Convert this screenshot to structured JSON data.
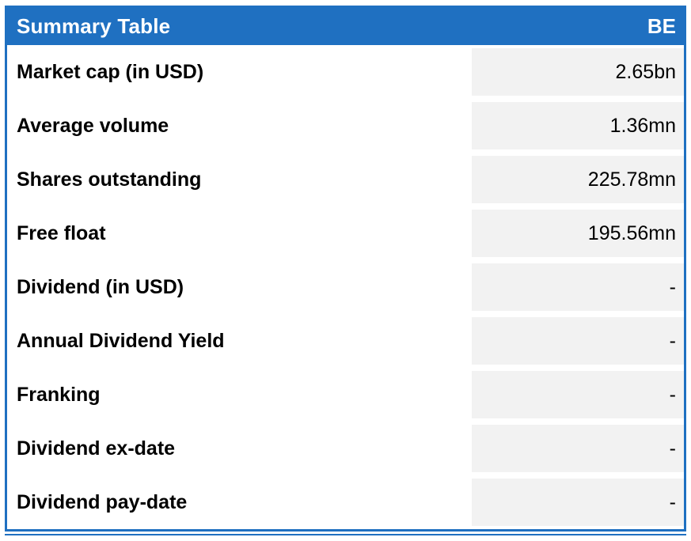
{
  "table": {
    "header": {
      "title": "Summary Table",
      "ticker": "BE"
    },
    "rows": [
      {
        "label": "Market cap (in USD)",
        "value": "2.65bn"
      },
      {
        "label": "Average volume",
        "value": "1.36mn"
      },
      {
        "label": "Shares outstanding",
        "value": "225.78mn"
      },
      {
        "label": "Free float",
        "value": "195.56mn"
      },
      {
        "label": "Dividend (in USD)",
        "value": "-"
      },
      {
        "label": "Annual Dividend Yield",
        "value": "-"
      },
      {
        "label": "Franking",
        "value": "-"
      },
      {
        "label": "Dividend ex-date",
        "value": "-"
      },
      {
        "label": "Dividend pay-date",
        "value": "-"
      }
    ],
    "colors": {
      "header_bg": "#1F70C1",
      "header_text": "#FFFFFF",
      "value_cell_bg": "#F2F2F2",
      "border": "#1F70C1",
      "label_text": "#000000"
    }
  }
}
